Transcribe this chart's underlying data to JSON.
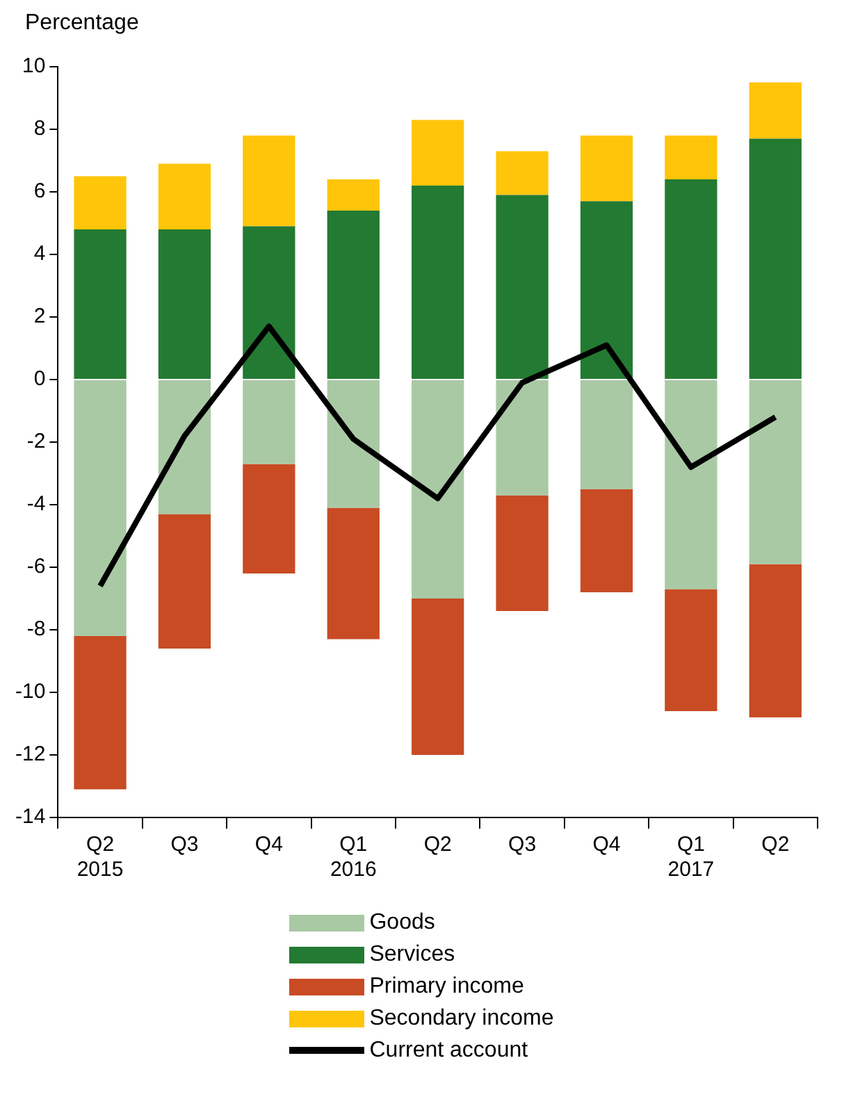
{
  "chart_data": {
    "type": "bar",
    "ylabel": "Percentage",
    "stacked": true,
    "legend": "bottom",
    "grid": false,
    "marker": "none",
    "categories": [
      "Q2\n2015",
      "Q3",
      "Q4",
      "Q1\n2016",
      "Q2",
      "Q3",
      "Q4",
      "Q1\n2017",
      "Q2"
    ],
    "ylim": [
      -14,
      10
    ],
    "yticks": [
      -14,
      -12,
      -10,
      -8,
      -6,
      -4,
      -2,
      0,
      2,
      4,
      6,
      8,
      10
    ],
    "series": [
      {
        "name": "Goods",
        "color": "#a9c9a4",
        "values": [
          -8.2,
          -4.3,
          -2.7,
          -4.1,
          -7.0,
          -3.7,
          -3.5,
          -6.7,
          -5.9
        ]
      },
      {
        "name": "Services",
        "color": "#237a32",
        "values": [
          4.8,
          4.8,
          4.9,
          5.4,
          6.2,
          5.9,
          5.7,
          6.4,
          7.7
        ]
      },
      {
        "name": "Primary income",
        "color": "#c84b24",
        "values": [
          -4.9,
          -4.3,
          -3.5,
          -4.2,
          -5.0,
          -3.7,
          -3.3,
          -3.9,
          -4.9
        ]
      },
      {
        "name": "Secondary income",
        "color": "#ffc50a",
        "values": [
          1.7,
          2.1,
          2.9,
          1.0,
          2.1,
          1.4,
          2.1,
          1.4,
          1.8
        ]
      },
      {
        "name": "Current account",
        "type": "line",
        "color": "#000000",
        "line_style": "solid",
        "values": [
          -6.6,
          -1.8,
          1.7,
          -1.9,
          -3.8,
          -0.1,
          1.1,
          -2.8,
          -1.2
        ]
      }
    ]
  }
}
